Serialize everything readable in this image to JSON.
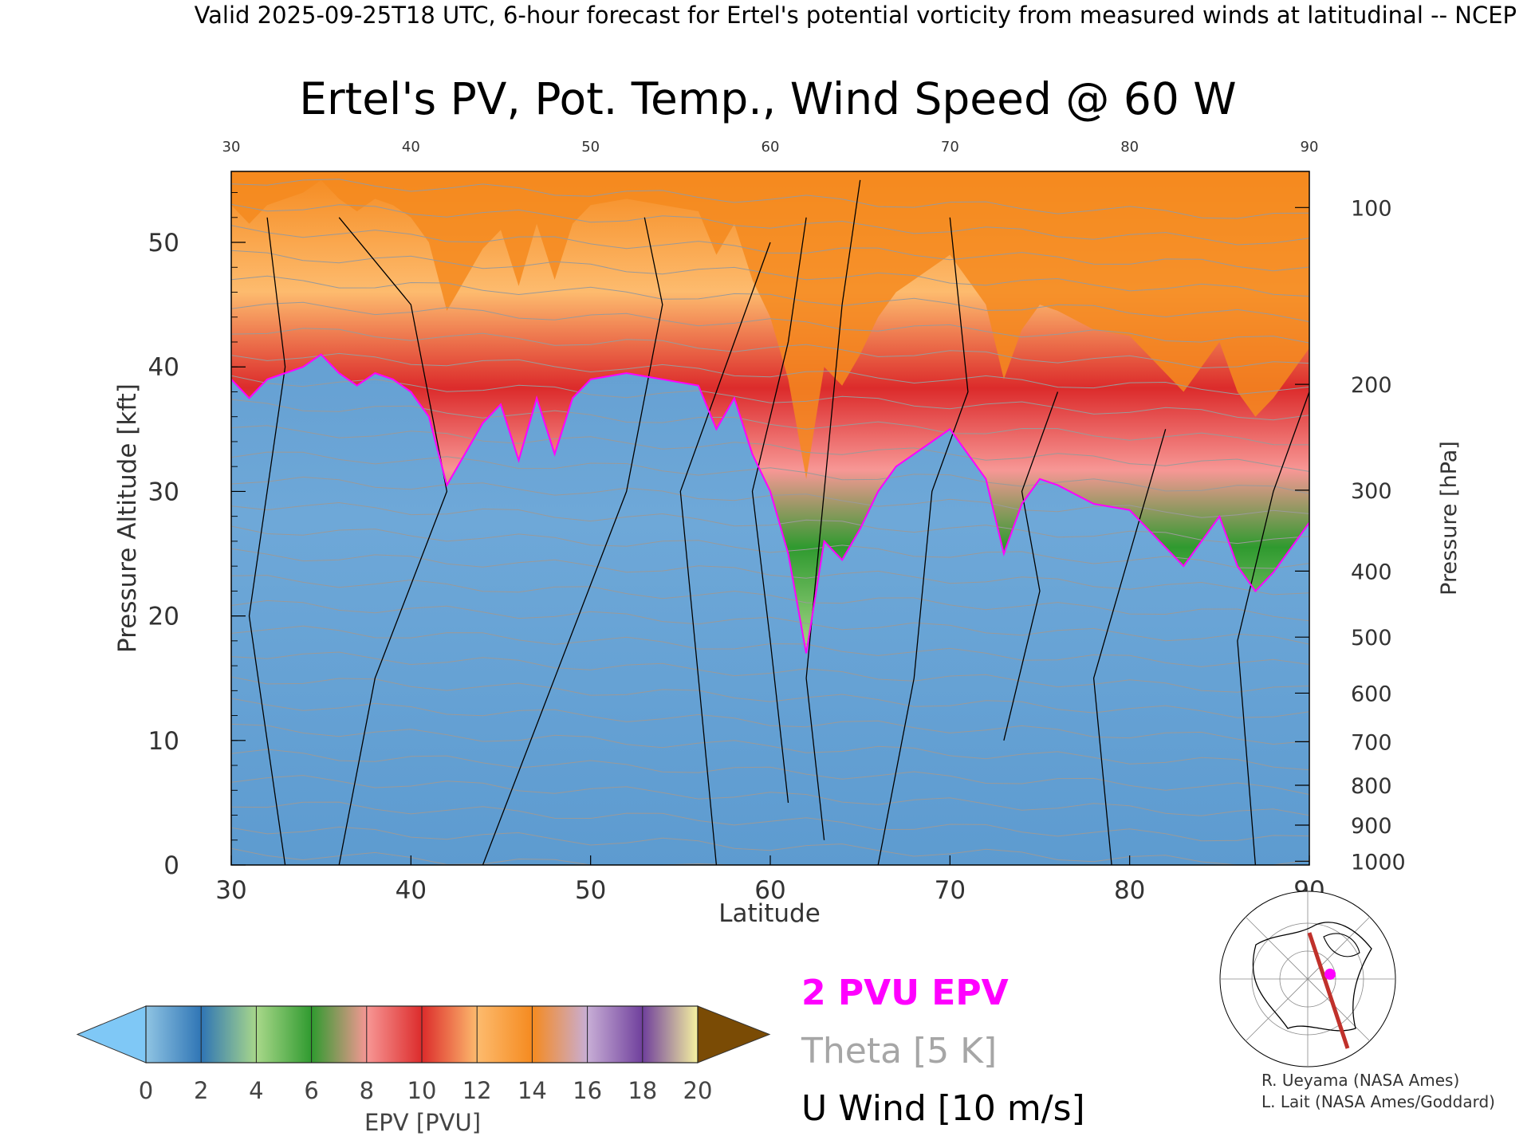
{
  "header": {
    "valid_line": "Valid 2025-09-25T18 UTC, 6-hour forecast for Ertel's potential vorticity from measured winds at latitudinal -- NCEP"
  },
  "chart_data": {
    "type": "heatmap",
    "title": "Ertel's PV, Pot. Temp., Wind Speed @ 60 W",
    "xlabel": "Latitude",
    "ylabel": "Pressure Altitude [kft]",
    "y2label": "Pressure [hPa]",
    "xlim": [
      30,
      90
    ],
    "ylim": [
      0,
      55.7
    ],
    "x_ticks": [
      "30",
      "40",
      "50",
      "60",
      "70",
      "80",
      "90"
    ],
    "y_ticks": [
      "0",
      "10",
      "20",
      "30",
      "40",
      "50"
    ],
    "pressure_ticks": [
      {
        "label": "100",
        "kft": 52.8
      },
      {
        "label": "200",
        "kft": 38.6
      },
      {
        "label": "300",
        "kft": 30.1
      },
      {
        "label": "400",
        "kft": 23.6
      },
      {
        "label": "500",
        "kft": 18.3
      },
      {
        "label": "600",
        "kft": 13.8
      },
      {
        "label": "700",
        "kft": 9.9
      },
      {
        "label": "800",
        "kft": 6.4
      },
      {
        "label": "900",
        "kft": 3.2
      },
      {
        "label": "1000",
        "kft": 0.3
      }
    ],
    "tropopause_2pvu_kft": [
      [
        30,
        39
      ],
      [
        31,
        37.5
      ],
      [
        32,
        39
      ],
      [
        33,
        39.5
      ],
      [
        34,
        40
      ],
      [
        35,
        41
      ],
      [
        36,
        39.5
      ],
      [
        37,
        38.5
      ],
      [
        38,
        39.5
      ],
      [
        39,
        39
      ],
      [
        40,
        38
      ],
      [
        41,
        36
      ],
      [
        42,
        30.5
      ],
      [
        43,
        33
      ],
      [
        44,
        35.5
      ],
      [
        45,
        37
      ],
      [
        46,
        32.5
      ],
      [
        47,
        37.5
      ],
      [
        48,
        33
      ],
      [
        49,
        37.5
      ],
      [
        50,
        39
      ],
      [
        52,
        39.5
      ],
      [
        54,
        39
      ],
      [
        56,
        38.5
      ],
      [
        57,
        35
      ],
      [
        58,
        37.5
      ],
      [
        59,
        33
      ],
      [
        60,
        30
      ],
      [
        61,
        25
      ],
      [
        62,
        17
      ],
      [
        63,
        26
      ],
      [
        64,
        24.5
      ],
      [
        65,
        27
      ],
      [
        66,
        30
      ],
      [
        67,
        32
      ],
      [
        68,
        33
      ],
      [
        69,
        34
      ],
      [
        70,
        35
      ],
      [
        71,
        33
      ],
      [
        72,
        31
      ],
      [
        73,
        25
      ],
      [
        74,
        29
      ],
      [
        75,
        31
      ],
      [
        76,
        30.5
      ],
      [
        78,
        29
      ],
      [
        80,
        28.5
      ],
      [
        82,
        25.5
      ],
      [
        83,
        24
      ],
      [
        84,
        26
      ],
      [
        85,
        28
      ],
      [
        86,
        24
      ],
      [
        87,
        22
      ],
      [
        88,
        23.5
      ],
      [
        89,
        25.5
      ],
      [
        90,
        27.5
      ]
    ],
    "epv_colorbar": {
      "label": "EPV [PVU]",
      "ticks": [
        "0",
        "2",
        "4",
        "6",
        "8",
        "10",
        "12",
        "14",
        "16",
        "18",
        "20"
      ],
      "colors": [
        "#8fc4e3",
        "#2f75b5",
        "#a9d88a",
        "#2f9a2f",
        "#f79795",
        "#dc2b2b",
        "#fdbb6e",
        "#f58a1f",
        "#c8aed6",
        "#6f3f9c",
        "#f6f3a0"
      ],
      "under_color": "#7fc8f6",
      "over_color": "#7a4b05"
    },
    "legend": [
      {
        "label": "2 PVU EPV",
        "color": "#ff00ff"
      },
      {
        "label": "Theta [5 K]",
        "color": "#a6a6a6"
      },
      {
        "label": "U Wind [10 m/s]",
        "color": "#000000"
      }
    ],
    "grid": false
  },
  "credits": {
    "line1": "R. Ueyama (NASA Ames)",
    "line2": "L. Lait (NASA Ames/Goddard)"
  }
}
